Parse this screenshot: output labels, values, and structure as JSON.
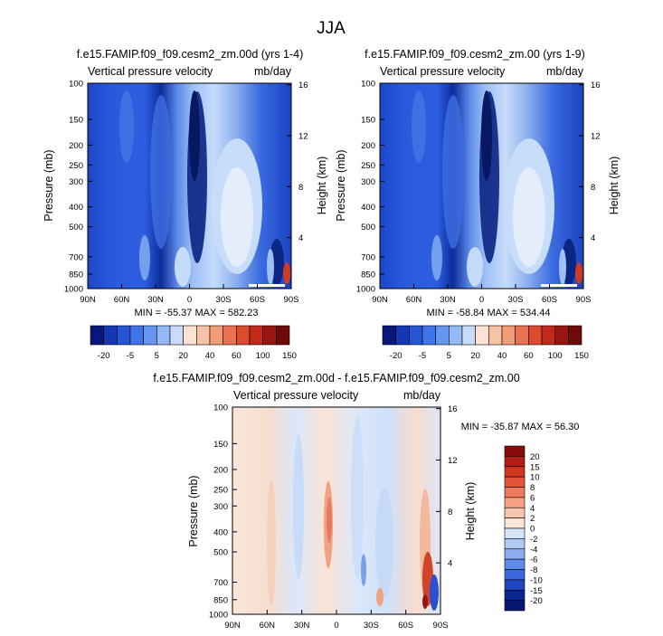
{
  "page": {
    "title": "JJA"
  },
  "x_ticks": [
    "90N",
    "60N",
    "30N",
    "0",
    "30S",
    "60S",
    "90S"
  ],
  "pressure_ticks": [
    "100",
    "150",
    "200",
    "250",
    "300",
    "400",
    "500",
    "700",
    "850",
    "1000"
  ],
  "height_ticks": [
    "16",
    "12",
    "8",
    "4"
  ],
  "ylabel_left": "Pressure (mb)",
  "ylabel_right": "Height (km)",
  "panels": [
    {
      "title": "f.e15.FAMIP.f09_f09.cesm2_zm.00d (yrs 1-4)",
      "left_label": "Vertical pressure velocity",
      "right_label": "mb/day",
      "min_max": "MIN = -55.37  MAX = 582.23"
    },
    {
      "title": "f.e15.FAMIP.f09_f09.cesm2_zm.00 (yrs 1-9)",
      "left_label": "Vertical pressure velocity",
      "right_label": "mb/day",
      "min_max": "MIN = -58.84  MAX = 534.44"
    },
    {
      "title": "f.e15.FAMIP.f09_f09.cesm2_zm.00d - f.e15.FAMIP.f09_f09.cesm2_zm.00",
      "left_label": "Vertical pressure velocity",
      "right_label": "mb/day",
      "min_max": "MIN = -35.87  MAX = 56.30"
    }
  ],
  "colorbar_top": {
    "labels": [
      "-20",
      "-5",
      "5",
      "20",
      "40",
      "60",
      "100",
      "150"
    ],
    "colors": [
      "#08177a",
      "#1537b5",
      "#2755d8",
      "#3f74ea",
      "#6495f0",
      "#95b9f4",
      "#c9dbf8",
      "#fbe2d2",
      "#f8c2a4",
      "#f29d77",
      "#ea7250",
      "#dd4a2e",
      "#c22919",
      "#9a1510",
      "#6e0a08"
    ]
  },
  "colorbar_diff": {
    "labels": [
      "20",
      "15",
      "10",
      "8",
      "6",
      "4",
      "2",
      "0",
      "-2",
      "-4",
      "-6",
      "-8",
      "-10",
      "-15",
      "-20"
    ],
    "colors": [
      "#8a0c08",
      "#b31d14",
      "#d1361f",
      "#e4543a",
      "#ef7a5d",
      "#f5a284",
      "#f8c6ae",
      "#fbe6d8",
      "#d6e4f8",
      "#b2cbf4",
      "#8aaeef",
      "#5f8ce8",
      "#3a68dc",
      "#1f45bf",
      "#0b258f",
      "#061870"
    ]
  },
  "chart_data": [
    {
      "type": "heatmap",
      "title": "f.e15.FAMIP.f09_f09.cesm2_zm.00d (yrs 1-4)",
      "xlabel": "",
      "ylabel": "Pressure (mb)",
      "y2label": "Height (km)",
      "x_range": [
        "90N",
        "90S"
      ],
      "y_range": [
        1000,
        100
      ],
      "y_scale": "log",
      "y2_range": [
        0,
        16
      ],
      "units": "mb/day",
      "min": -55.37,
      "max": 582.23,
      "colorbar_levels": [
        -20,
        -15,
        -10,
        -5,
        0,
        5,
        10,
        20,
        30,
        40,
        50,
        60,
        80,
        100,
        150
      ]
    },
    {
      "type": "heatmap",
      "title": "f.e15.FAMIP.f09_f09.cesm2_zm.00 (yrs 1-9)",
      "xlabel": "",
      "ylabel": "Pressure (mb)",
      "y2label": "Height (km)",
      "x_range": [
        "90N",
        "90S"
      ],
      "y_range": [
        1000,
        100
      ],
      "y_scale": "log",
      "y2_range": [
        0,
        16
      ],
      "units": "mb/day",
      "min": -58.84,
      "max": 534.44,
      "colorbar_levels": [
        -20,
        -15,
        -10,
        -5,
        0,
        5,
        10,
        20,
        30,
        40,
        50,
        60,
        80,
        100,
        150
      ]
    },
    {
      "type": "heatmap",
      "title": "f.e15.FAMIP.f09_f09.cesm2_zm.00d - f.e15.FAMIP.f09_f09.cesm2_zm.00",
      "xlabel": "",
      "ylabel": "Pressure (mb)",
      "y2label": "Height (km)",
      "x_range": [
        "90N",
        "90S"
      ],
      "y_range": [
        1000,
        100
      ],
      "y_scale": "log",
      "y2_range": [
        0,
        16
      ],
      "units": "mb/day",
      "min": -35.87,
      "max": 56.3,
      "colorbar_levels": [
        -20,
        -15,
        -10,
        -8,
        -6,
        -4,
        -2,
        0,
        2,
        4,
        6,
        8,
        10,
        15,
        20
      ]
    }
  ]
}
